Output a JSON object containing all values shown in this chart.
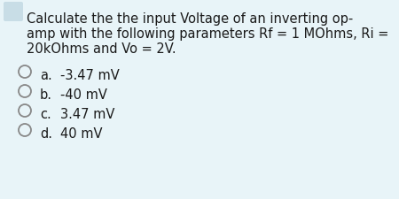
{
  "background_color": "#e8f4f8",
  "question_lines": [
    "Calculate the the input Voltage of an inverting op-",
    "amp with the following parameters Rf = 1 MOhms, Ri =",
    "20kOhms and Vo = 2V."
  ],
  "options": [
    {
      "label": "a.",
      "text": "-3.47 mV"
    },
    {
      "label": "b.",
      "text": "-40 mV"
    },
    {
      "label": "c.",
      "text": "3.47 mV"
    },
    {
      "label": "d.",
      "text": "40 mV"
    }
  ],
  "text_color": "#1a1a1a",
  "circle_edge_color": "#888888",
  "font_size": 10.5,
  "bullet_color": "#c8dde6"
}
